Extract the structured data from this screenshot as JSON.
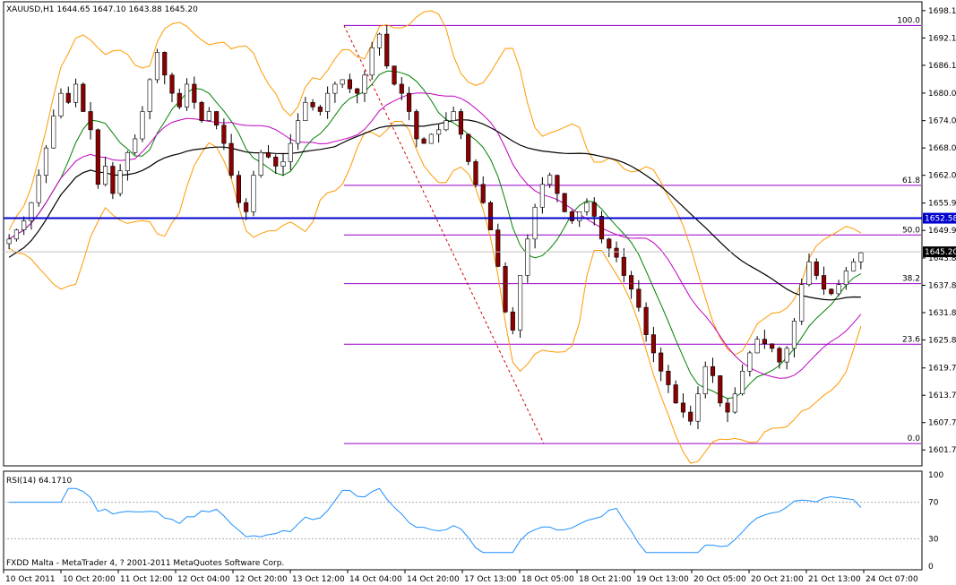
{
  "header": {
    "symbol_text": "XAUUSD,H1  1644.65 1647.10 1643.88 1645.20"
  },
  "rsi_header": {
    "text": "RSI(14) 64.1710"
  },
  "footer": {
    "copyright": "FXDD Malta - MetaTrader 4, ? 2001-2011 MetaQuotes Software Corp."
  },
  "colors": {
    "background": "#ffffff",
    "bull_candle": "#ffffff",
    "bear_candle": "#8b0000",
    "wick": "#000000",
    "bollinger": "#ff9900",
    "ma_green": "#008000",
    "ma_magenta": "#c000c0",
    "ma_black": "#000000",
    "fib": "#9900cc",
    "horizontal_line": "#0000cc",
    "rsi": "#1e90ff",
    "trend_dash": "#cc0000"
  },
  "chart_data": [
    {
      "type": "candlestick",
      "title": "XAUUSD,H1",
      "ohlc_last": {
        "open": 1644.65,
        "high": 1647.1,
        "low": 1643.88,
        "close": 1645.2
      },
      "ylim": [
        1598.6,
        1699.7
      ],
      "y_tick_labels": [
        "1698.15",
        "1692.15",
        "1686.15",
        "1680.05",
        "1674.00",
        "1668.00",
        "1662.00",
        "1655.90",
        "1649.90",
        "1643.85",
        "1637.85",
        "1631.85",
        "1625.85",
        "1619.70",
        "1613.70",
        "1607.70",
        "1601.70"
      ],
      "x_tick_labels": [
        "10 Oct 2011",
        "10 Oct 20:00",
        "11 Oct 12:00",
        "12 Oct 04:00",
        "12 Oct 20:00",
        "13 Oct 12:00",
        "14 Oct 04:00",
        "14 Oct 20:00",
        "17 Oct 13:00",
        "18 Oct 05:00",
        "18 Oct 21:00",
        "19 Oct 13:00",
        "20 Oct 05:00",
        "20 Oct 21:00",
        "21 Oct 13:00",
        "24 Oct 07:00"
      ],
      "current_price_label": "1645.20",
      "horizontal_line": {
        "value": 1652.58,
        "label": "1652.58"
      },
      "fibonacci": {
        "levels": [
          {
            "label": "100.0",
            "price": 1694.9
          },
          {
            "label": "61.8",
            "price": 1659.8
          },
          {
            "label": "50.0",
            "price": 1648.9
          },
          {
            "label": "38.2",
            "price": 1638.2
          },
          {
            "label": "23.6",
            "price": 1624.9
          },
          {
            "label": "0.0",
            "price": 1603.1
          }
        ]
      },
      "close_path": [
        1648,
        1650,
        1652,
        1656,
        1662,
        1668,
        1675,
        1680,
        1678,
        1682,
        1676,
        1672,
        1660,
        1664,
        1658,
        1663,
        1667,
        1670,
        1676,
        1683,
        1689,
        1684,
        1680,
        1677,
        1682,
        1678,
        1674,
        1676,
        1673,
        1669,
        1662,
        1656,
        1654,
        1662,
        1667,
        1666,
        1664,
        1665,
        1669,
        1674,
        1678,
        1677,
        1676,
        1680,
        1682,
        1683,
        1681,
        1680,
        1684,
        1690,
        1693,
        1686,
        1682,
        1680,
        1676,
        1670,
        1669,
        1671,
        1672,
        1674,
        1676,
        1671,
        1665,
        1660,
        1656,
        1650,
        1642,
        1632,
        1628,
        1640,
        1648,
        1655,
        1660,
        1662,
        1658,
        1654,
        1652,
        1654,
        1656,
        1653,
        1648,
        1646,
        1644,
        1640,
        1637,
        1633,
        1627,
        1623,
        1619,
        1616,
        1612,
        1610,
        1608,
        1614,
        1620,
        1618,
        1612,
        1610,
        1614,
        1619,
        1623,
        1626,
        1625,
        1624,
        1621,
        1624,
        1630,
        1638,
        1643,
        1640,
        1637,
        1636,
        1638,
        1641,
        1643,
        1645
      ],
      "rsi": {
        "name": "RSI(14)",
        "value": 64.171,
        "ylim": [
          0,
          100
        ],
        "y_tick_labels": [
          "100",
          "70",
          "30",
          "0"
        ]
      }
    }
  ]
}
